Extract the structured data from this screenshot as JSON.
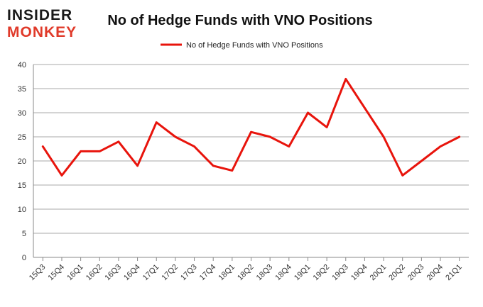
{
  "logo": {
    "line1": "INSIDER",
    "line2": "MONKEY"
  },
  "chart_data": {
    "type": "line",
    "title": "No of Hedge Funds with VNO Positions",
    "xlabel": "",
    "ylabel": "",
    "categories": [
      "15Q3",
      "15Q4",
      "16Q1",
      "16Q2",
      "16Q3",
      "16Q4",
      "17Q1",
      "17Q2",
      "17Q3",
      "17Q4",
      "18Q1",
      "18Q2",
      "18Q3",
      "18Q4",
      "19Q1",
      "19Q2",
      "19Q3",
      "19Q4",
      "20Q1",
      "20Q2",
      "20Q3",
      "20Q4",
      "21Q1"
    ],
    "series": [
      {
        "name": "No of Hedge Funds with VNO Positions",
        "color": "#e8140c",
        "values": [
          23,
          17,
          22,
          22,
          24,
          19,
          28,
          25,
          23,
          19,
          18,
          26,
          25,
          23,
          30,
          27,
          37,
          31,
          25,
          17,
          20,
          23,
          25
        ]
      }
    ],
    "ylim": [
      0,
      40
    ],
    "yticks": [
      0,
      5,
      10,
      15,
      20,
      25,
      30,
      35,
      40
    ],
    "grid": true,
    "legend_position": "top-center"
  }
}
